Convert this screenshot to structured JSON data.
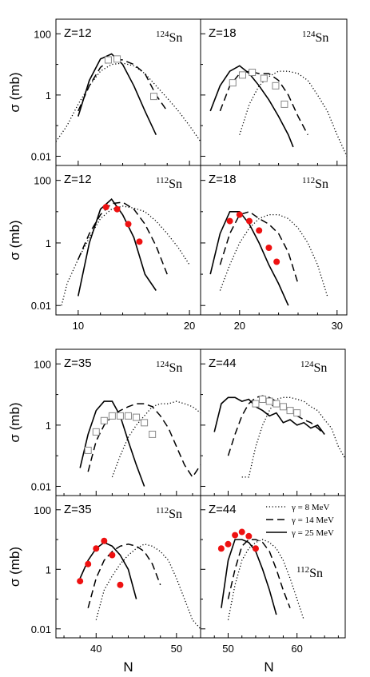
{
  "figure": {
    "ylabel": "σ (mb)",
    "xlabel": "N",
    "y_ticks": [
      "100",
      "1",
      "0.01"
    ],
    "top_x_ticks": [
      "10",
      "20",
      "30"
    ],
    "bottom_x_ticks": [
      "40",
      "50",
      "40",
      "50",
      "60"
    ],
    "legend": {
      "entries": [
        {
          "label": "γ = 8 MeV",
          "style": "dotted"
        },
        {
          "label": "γ = 14 MeV",
          "style": "dashed"
        },
        {
          "label": "γ = 25 MeV",
          "style": "solid"
        }
      ]
    }
  },
  "chart_data": [
    {
      "type": "line",
      "panel": "top-left-upper",
      "z_label": "Z=12",
      "target": {
        "mass": "124",
        "element": "Sn"
      },
      "xlim": [
        8,
        21
      ],
      "ylim": [
        0.005,
        300
      ],
      "yscale": "log",
      "series": [
        {
          "name": "γ = 8 MeV",
          "style": "dotted",
          "x": [
            8,
            9,
            10,
            11,
            12,
            13,
            14,
            15,
            16,
            17,
            18,
            19,
            20,
            21
          ],
          "y": [
            0.03,
            0.1,
            0.5,
            2,
            6,
            10,
            11,
            9,
            5,
            2,
            0.8,
            0.3,
            0.1,
            0.03
          ]
        },
        {
          "name": "γ = 14 MeV",
          "style": "dashed",
          "x": [
            10,
            11,
            12,
            13,
            14,
            15,
            16,
            17,
            18
          ],
          "y": [
            0.3,
            2,
            8,
            15,
            14,
            10,
            5,
            1,
            0.3
          ]
        },
        {
          "name": "γ = 25 MeV",
          "style": "solid",
          "x": [
            10,
            11,
            12,
            13,
            14,
            15,
            16,
            17
          ],
          "y": [
            0.2,
            3,
            15,
            22,
            10,
            2,
            0.3,
            0.05
          ]
        }
      ],
      "points": {
        "marker": "open-square",
        "x": [
          12.7,
          13.5,
          16.8
        ],
        "y": [
          14,
          15,
          0.9
        ]
      }
    },
    {
      "type": "line",
      "panel": "top-right-upper",
      "z_label": "Z=18",
      "target": {
        "mass": "124",
        "element": "Sn"
      },
      "xlim": [
        16,
        31
      ],
      "ylim": [
        0.005,
        300
      ],
      "yscale": "log",
      "series": [
        {
          "name": "γ = 8 MeV",
          "style": "dotted",
          "x": [
            20,
            21,
            22,
            23,
            24,
            25,
            26,
            27,
            28,
            29,
            30,
            31
          ],
          "y": [
            0.05,
            0.5,
            2,
            4,
            6,
            6,
            5,
            3,
            1,
            0.3,
            0.05,
            0.01
          ]
        },
        {
          "name": "γ = 14 MeV",
          "style": "dashed",
          "x": [
            18,
            19,
            20,
            21,
            22,
            23,
            24,
            25,
            26,
            27
          ],
          "y": [
            0.3,
            2,
            5,
            6,
            5,
            5,
            3,
            1,
            0.2,
            0.05
          ]
        },
        {
          "name": "γ = 25 MeV",
          "style": "solid",
          "x": [
            17,
            18,
            19,
            20,
            21,
            22,
            23,
            24,
            25,
            25.5
          ],
          "y": [
            0.3,
            2,
            6,
            9,
            5,
            2,
            0.7,
            0.2,
            0.05,
            0.02
          ]
        }
      ],
      "points": {
        "marker": "open-square",
        "x": [
          19.3,
          20.3,
          21.3,
          22.5,
          23.7,
          24.6
        ],
        "y": [
          2.5,
          4.5,
          5.5,
          3.5,
          2,
          0.5
        ]
      }
    },
    {
      "type": "line",
      "panel": "top-left-lower",
      "z_label": "Z=12",
      "target": {
        "mass": "112",
        "element": "Sn"
      },
      "xlim": [
        8,
        21
      ],
      "ylim": [
        0.005,
        300
      ],
      "yscale": "log",
      "series": [
        {
          "name": "γ = 8 MeV",
          "style": "dotted",
          "x": [
            8.5,
            9,
            10,
            11,
            12,
            13,
            14,
            15,
            16,
            17,
            18,
            19,
            20
          ],
          "y": [
            0.01,
            0.05,
            0.3,
            1.5,
            6,
            12,
            15,
            13,
            10,
            5,
            2,
            0.7,
            0.2
          ]
        },
        {
          "name": "γ = 14 MeV",
          "style": "dashed",
          "x": [
            10,
            11,
            12,
            13,
            14,
            15,
            16,
            17,
            18
          ],
          "y": [
            0.3,
            2,
            8,
            18,
            20,
            12,
            4,
            0.8,
            0.1
          ]
        },
        {
          "name": "γ = 25 MeV",
          "style": "solid",
          "x": [
            10,
            11,
            12,
            13,
            14,
            15,
            16,
            17
          ],
          "y": [
            0.02,
            1,
            12,
            25,
            8,
            1.5,
            0.1,
            0.03
          ]
        }
      ],
      "points": {
        "marker": "filled-circle",
        "x": [
          12.5,
          13.5,
          14.5,
          15.5
        ],
        "y": [
          14,
          12,
          4,
          1.1
        ]
      }
    },
    {
      "type": "line",
      "panel": "top-right-lower",
      "z_label": "Z=18",
      "target": {
        "mass": "112",
        "element": "Sn"
      },
      "xlim": [
        16,
        31
      ],
      "ylim": [
        0.005,
        300
      ],
      "yscale": "log",
      "series": [
        {
          "name": "γ = 8 MeV",
          "style": "dotted",
          "x": [
            18,
            19,
            20,
            21,
            22,
            23,
            24,
            25,
            26,
            27,
            28,
            29
          ],
          "y": [
            0.03,
            0.2,
            1,
            3,
            6,
            8,
            8,
            6,
            3,
            1,
            0.2,
            0.02
          ]
        },
        {
          "name": "γ = 14 MeV",
          "style": "dashed",
          "x": [
            18,
            19,
            20,
            21,
            22,
            23,
            24,
            25,
            26
          ],
          "y": [
            0.2,
            2,
            8,
            10,
            6,
            4,
            2,
            0.5,
            0.05
          ]
        },
        {
          "name": "γ = 25 MeV",
          "style": "solid",
          "x": [
            17,
            18,
            19,
            20,
            21,
            22,
            23,
            24,
            25
          ],
          "y": [
            0.1,
            2,
            10,
            10,
            4,
            1,
            0.2,
            0.05,
            0.01
          ]
        }
      ],
      "points": {
        "marker": "filled-circle",
        "x": [
          19,
          20,
          21,
          22,
          23,
          23.8
        ],
        "y": [
          5,
          8,
          5,
          2.5,
          0.7,
          0.25
        ]
      }
    },
    {
      "type": "line",
      "panel": "bottom-left-upper",
      "z_label": "Z=35",
      "target": {
        "mass": "124",
        "element": "Sn"
      },
      "xlim": [
        35,
        53
      ],
      "ylim": [
        0.005,
        300
      ],
      "yscale": "log",
      "series": [
        {
          "name": "γ = 8 MeV",
          "style": "dotted",
          "x": [
            42,
            43,
            44,
            45,
            46,
            47,
            48,
            49,
            50,
            51,
            52,
            53
          ],
          "y": [
            0.02,
            0.1,
            0.4,
            1,
            2,
            4,
            5,
            5,
            6,
            5,
            4,
            2.5
          ]
        },
        {
          "name": "γ = 14 MeV",
          "style": "dashed",
          "x": [
            39,
            40,
            41,
            42,
            43,
            44,
            45,
            46,
            47,
            48,
            49,
            50,
            51,
            52,
            53
          ],
          "y": [
            0.03,
            0.3,
            1,
            2,
            3,
            4,
            5,
            5,
            4,
            2,
            0.8,
            0.2,
            0.05,
            0.02,
            0.05
          ]
        },
        {
          "name": "γ = 25 MeV",
          "style": "solid",
          "x": [
            38,
            39,
            40,
            41,
            42,
            43,
            44,
            45,
            46
          ],
          "y": [
            0.04,
            0.5,
            3,
            6,
            6,
            2,
            0.3,
            0.05,
            0.01
          ]
        }
      ],
      "points": {
        "marker": "open-square",
        "x": [
          39,
          40,
          41,
          42,
          43,
          44,
          45,
          46,
          47
        ],
        "y": [
          0.15,
          0.6,
          1.4,
          2,
          2,
          2,
          1.8,
          1.2,
          0.5
        ]
      }
    },
    {
      "type": "line",
      "panel": "bottom-right-upper",
      "z_label": "Z=44",
      "target": {
        "mass": "124",
        "element": "Sn"
      },
      "xlim": [
        46,
        67
      ],
      "ylim": [
        0.005,
        300
      ],
      "yscale": "log",
      "series": [
        {
          "name": "γ = 8 MeV",
          "style": "dotted",
          "x": [
            52,
            53,
            54,
            55,
            56,
            57,
            58,
            59,
            60,
            61,
            62,
            63,
            64,
            65,
            66,
            67
          ],
          "y": [
            0.02,
            0.02,
            0.2,
            1,
            3,
            7,
            8,
            8,
            7,
            6,
            4,
            3,
            1.5,
            0.8,
            0.2,
            0.08
          ]
        },
        {
          "name": "γ = 14 MeV",
          "style": "dashed",
          "x": [
            50,
            51,
            52,
            53,
            54,
            55,
            56,
            57,
            58,
            59,
            60,
            61,
            62,
            63,
            64
          ],
          "y": [
            0.1,
            0.5,
            2,
            5,
            8,
            9,
            8,
            6,
            4,
            3,
            2,
            1.5,
            1.2,
            0.8,
            0.5
          ]
        },
        {
          "name": "γ = 25 MeV",
          "style": "solid",
          "x": [
            48,
            49,
            50,
            51,
            52,
            53,
            54,
            55,
            56,
            57,
            58,
            59,
            60,
            61,
            62,
            63,
            64
          ],
          "y": [
            0.6,
            5,
            8,
            8,
            6,
            7,
            4,
            3,
            2,
            2.5,
            1.2,
            1.5,
            1,
            1.2,
            0.8,
            1,
            0.5
          ]
        }
      ],
      "points": {
        "marker": "open-square",
        "x": [
          54,
          55,
          56,
          57,
          58,
          59,
          60
        ],
        "y": [
          5,
          7,
          6,
          5,
          4,
          3,
          2.5
        ]
      }
    },
    {
      "type": "line",
      "panel": "bottom-left-lower",
      "z_label": "Z=35",
      "target": {
        "mass": "112",
        "element": "Sn"
      },
      "xlim": [
        35,
        53
      ],
      "ylim": [
        0.005,
        300
      ],
      "yscale": "log",
      "series": [
        {
          "name": "γ = 8 MeV",
          "style": "dotted",
          "x": [
            40,
            41,
            42,
            43,
            44,
            45,
            46,
            47,
            48,
            49,
            50,
            51,
            52,
            53
          ],
          "y": [
            0.02,
            0.2,
            0.6,
            1.5,
            3,
            5,
            7,
            6,
            4,
            2,
            0.5,
            0.1,
            0.02,
            0.01
          ]
        },
        {
          "name": "γ = 14 MeV",
          "style": "dashed",
          "x": [
            39,
            40,
            41,
            42,
            43,
            44,
            45,
            46,
            47,
            48
          ],
          "y": [
            0.05,
            0.5,
            2,
            4,
            6,
            7,
            6,
            4,
            1.5,
            0.3
          ]
        },
        {
          "name": "γ = 25 MeV",
          "style": "solid",
          "x": [
            38,
            39,
            40,
            41,
            42,
            43,
            44,
            45
          ],
          "y": [
            0.5,
            2,
            5,
            8,
            6,
            3,
            1,
            0.1
          ]
        }
      ],
      "points": {
        "marker": "filled-circle",
        "x": [
          38,
          39,
          40,
          41,
          42,
          43
        ],
        "y": [
          0.4,
          1.5,
          5,
          9,
          3,
          0.3
        ]
      }
    },
    {
      "type": "line",
      "panel": "bottom-right-lower",
      "z_label": "Z=44",
      "target": {
        "mass": "112",
        "element": "Sn"
      },
      "xlim": [
        46,
        67
      ],
      "ylim": [
        0.005,
        300
      ],
      "yscale": "log",
      "series": [
        {
          "name": "γ = 8 MeV",
          "style": "dotted",
          "x": [
            50,
            51,
            52,
            53,
            54,
            55,
            56,
            57,
            58,
            59,
            60,
            61
          ],
          "y": [
            0.02,
            0.3,
            2,
            5,
            8,
            10,
            8,
            5,
            2,
            0.5,
            0.1,
            0.02
          ]
        },
        {
          "name": "γ = 14 MeV",
          "style": "dashed",
          "x": [
            50,
            51,
            52,
            53,
            54,
            55,
            56,
            57,
            58,
            59
          ],
          "y": [
            0.1,
            1,
            6,
            10,
            10,
            8,
            4,
            1,
            0.2,
            0.05
          ]
        },
        {
          "name": "γ = 25 MeV",
          "style": "solid",
          "x": [
            49,
            50,
            51,
            52,
            53,
            54,
            55,
            56,
            57
          ],
          "y": [
            0.05,
            2,
            10,
            10,
            8,
            4,
            1,
            0.2,
            0.03
          ]
        }
      ],
      "points": {
        "marker": "filled-circle",
        "x": [
          49,
          50,
          51,
          52,
          53,
          54
        ],
        "y": [
          5,
          7,
          14,
          18,
          13,
          5
        ]
      }
    }
  ]
}
